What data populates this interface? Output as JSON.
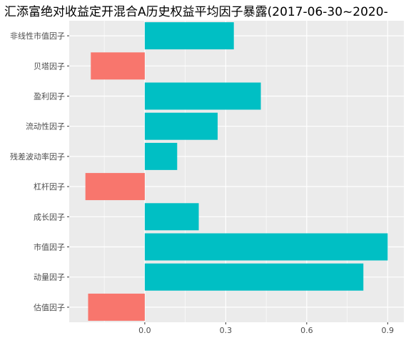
{
  "chart_data": {
    "type": "bar",
    "orientation": "horizontal",
    "title": "汇添富绝对收益定开混合A历史权益平均因子暴露(2017-06-30~2020-",
    "xlabel": "",
    "ylabel": "",
    "categories": [
      "非线性市值因子",
      "贝塔因子",
      "盈利因子",
      "流动性因子",
      "残差波动率因子",
      "杠杆因子",
      "成长因子",
      "市值因子",
      "动量因子",
      "估值因子"
    ],
    "values": [
      0.33,
      -0.2,
      0.43,
      0.27,
      0.12,
      -0.22,
      0.2,
      0.9,
      0.81,
      -0.21
    ],
    "xlim": [
      -0.28,
      0.96
    ],
    "xticks": [
      "0.0",
      "0.3",
      "0.6",
      "0.9"
    ],
    "xtick_values": [
      0.0,
      0.3,
      0.6,
      0.9
    ],
    "grid": true,
    "legend": "none",
    "colors": {
      "positive": "#00BFC4",
      "negative": "#F8766D",
      "panel": "#EBEBEB",
      "grid": "#FFFFFF"
    }
  }
}
